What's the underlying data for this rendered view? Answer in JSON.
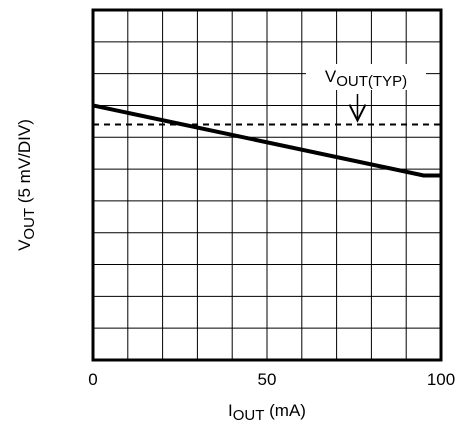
{
  "chart_data": {
    "type": "line",
    "title": "",
    "xlabel": {
      "main": "I",
      "sub": "OUT",
      "rest": " (mA)"
    },
    "ylabel": {
      "main": "V",
      "sub": "OUT",
      "rest": " (5 mV/DIV)"
    },
    "xlim": [
      0,
      100
    ],
    "ylim": [
      0,
      11
    ],
    "x_ticks": [
      {
        "value": 0,
        "label": "0"
      },
      {
        "value": 50,
        "label": "50"
      },
      {
        "value": 100,
        "label": "100"
      }
    ],
    "grid": {
      "x_divisions": 10,
      "y_divisions": 11,
      "visible": true
    },
    "series": [
      {
        "name": "",
        "style": "solid",
        "x": [
          0,
          95,
          100
        ],
        "y": [
          8.0,
          5.8,
          5.8
        ]
      },
      {
        "name": "",
        "style": "dashed",
        "x": [
          0,
          100
        ],
        "y": [
          7.4,
          7.4
        ]
      }
    ],
    "annotation": {
      "text_main": "V",
      "text_sub": "OUT(TYP)",
      "arrow_to": {
        "x": 76,
        "y": 7.4
      }
    }
  }
}
